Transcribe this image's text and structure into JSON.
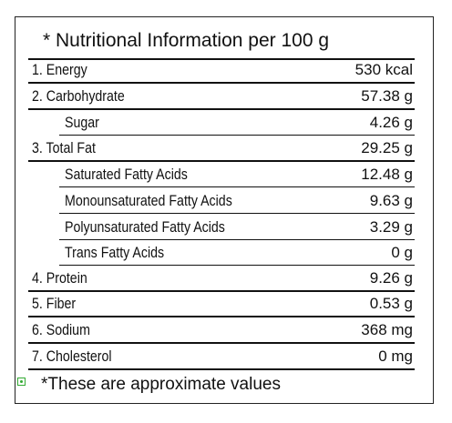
{
  "header": {
    "title": "* Nutritional Information per 100 g"
  },
  "table": {
    "rows": [
      {
        "label": "1. Energy",
        "value": "530 kcal"
      },
      {
        "label": "2. Carbohydrate",
        "value": "57.38 g",
        "sub": [
          {
            "label": "Sugar",
            "value": "4.26 g"
          }
        ]
      },
      {
        "label": "3. Total Fat",
        "value": "29.25 g",
        "sub": [
          {
            "label": "Saturated Fatty Acids",
            "value": "12.48 g"
          },
          {
            "label": "Monounsaturated Fatty Acids",
            "value": "9.63 g"
          },
          {
            "label": "Polyunsaturated Fatty Acids",
            "value": "3.29 g"
          },
          {
            "label": "Trans Fatty Acids",
            "value": "0 g"
          }
        ]
      },
      {
        "label": "4. Protein",
        "value": "9.26 g"
      },
      {
        "label": "5. Fiber",
        "value": "0.53 g"
      },
      {
        "label": "6. Sodium",
        "value": "368 mg"
      },
      {
        "label": "7. Cholesterol",
        "value": "0 mg"
      }
    ]
  },
  "footer": {
    "note": "*These are approximate values"
  }
}
